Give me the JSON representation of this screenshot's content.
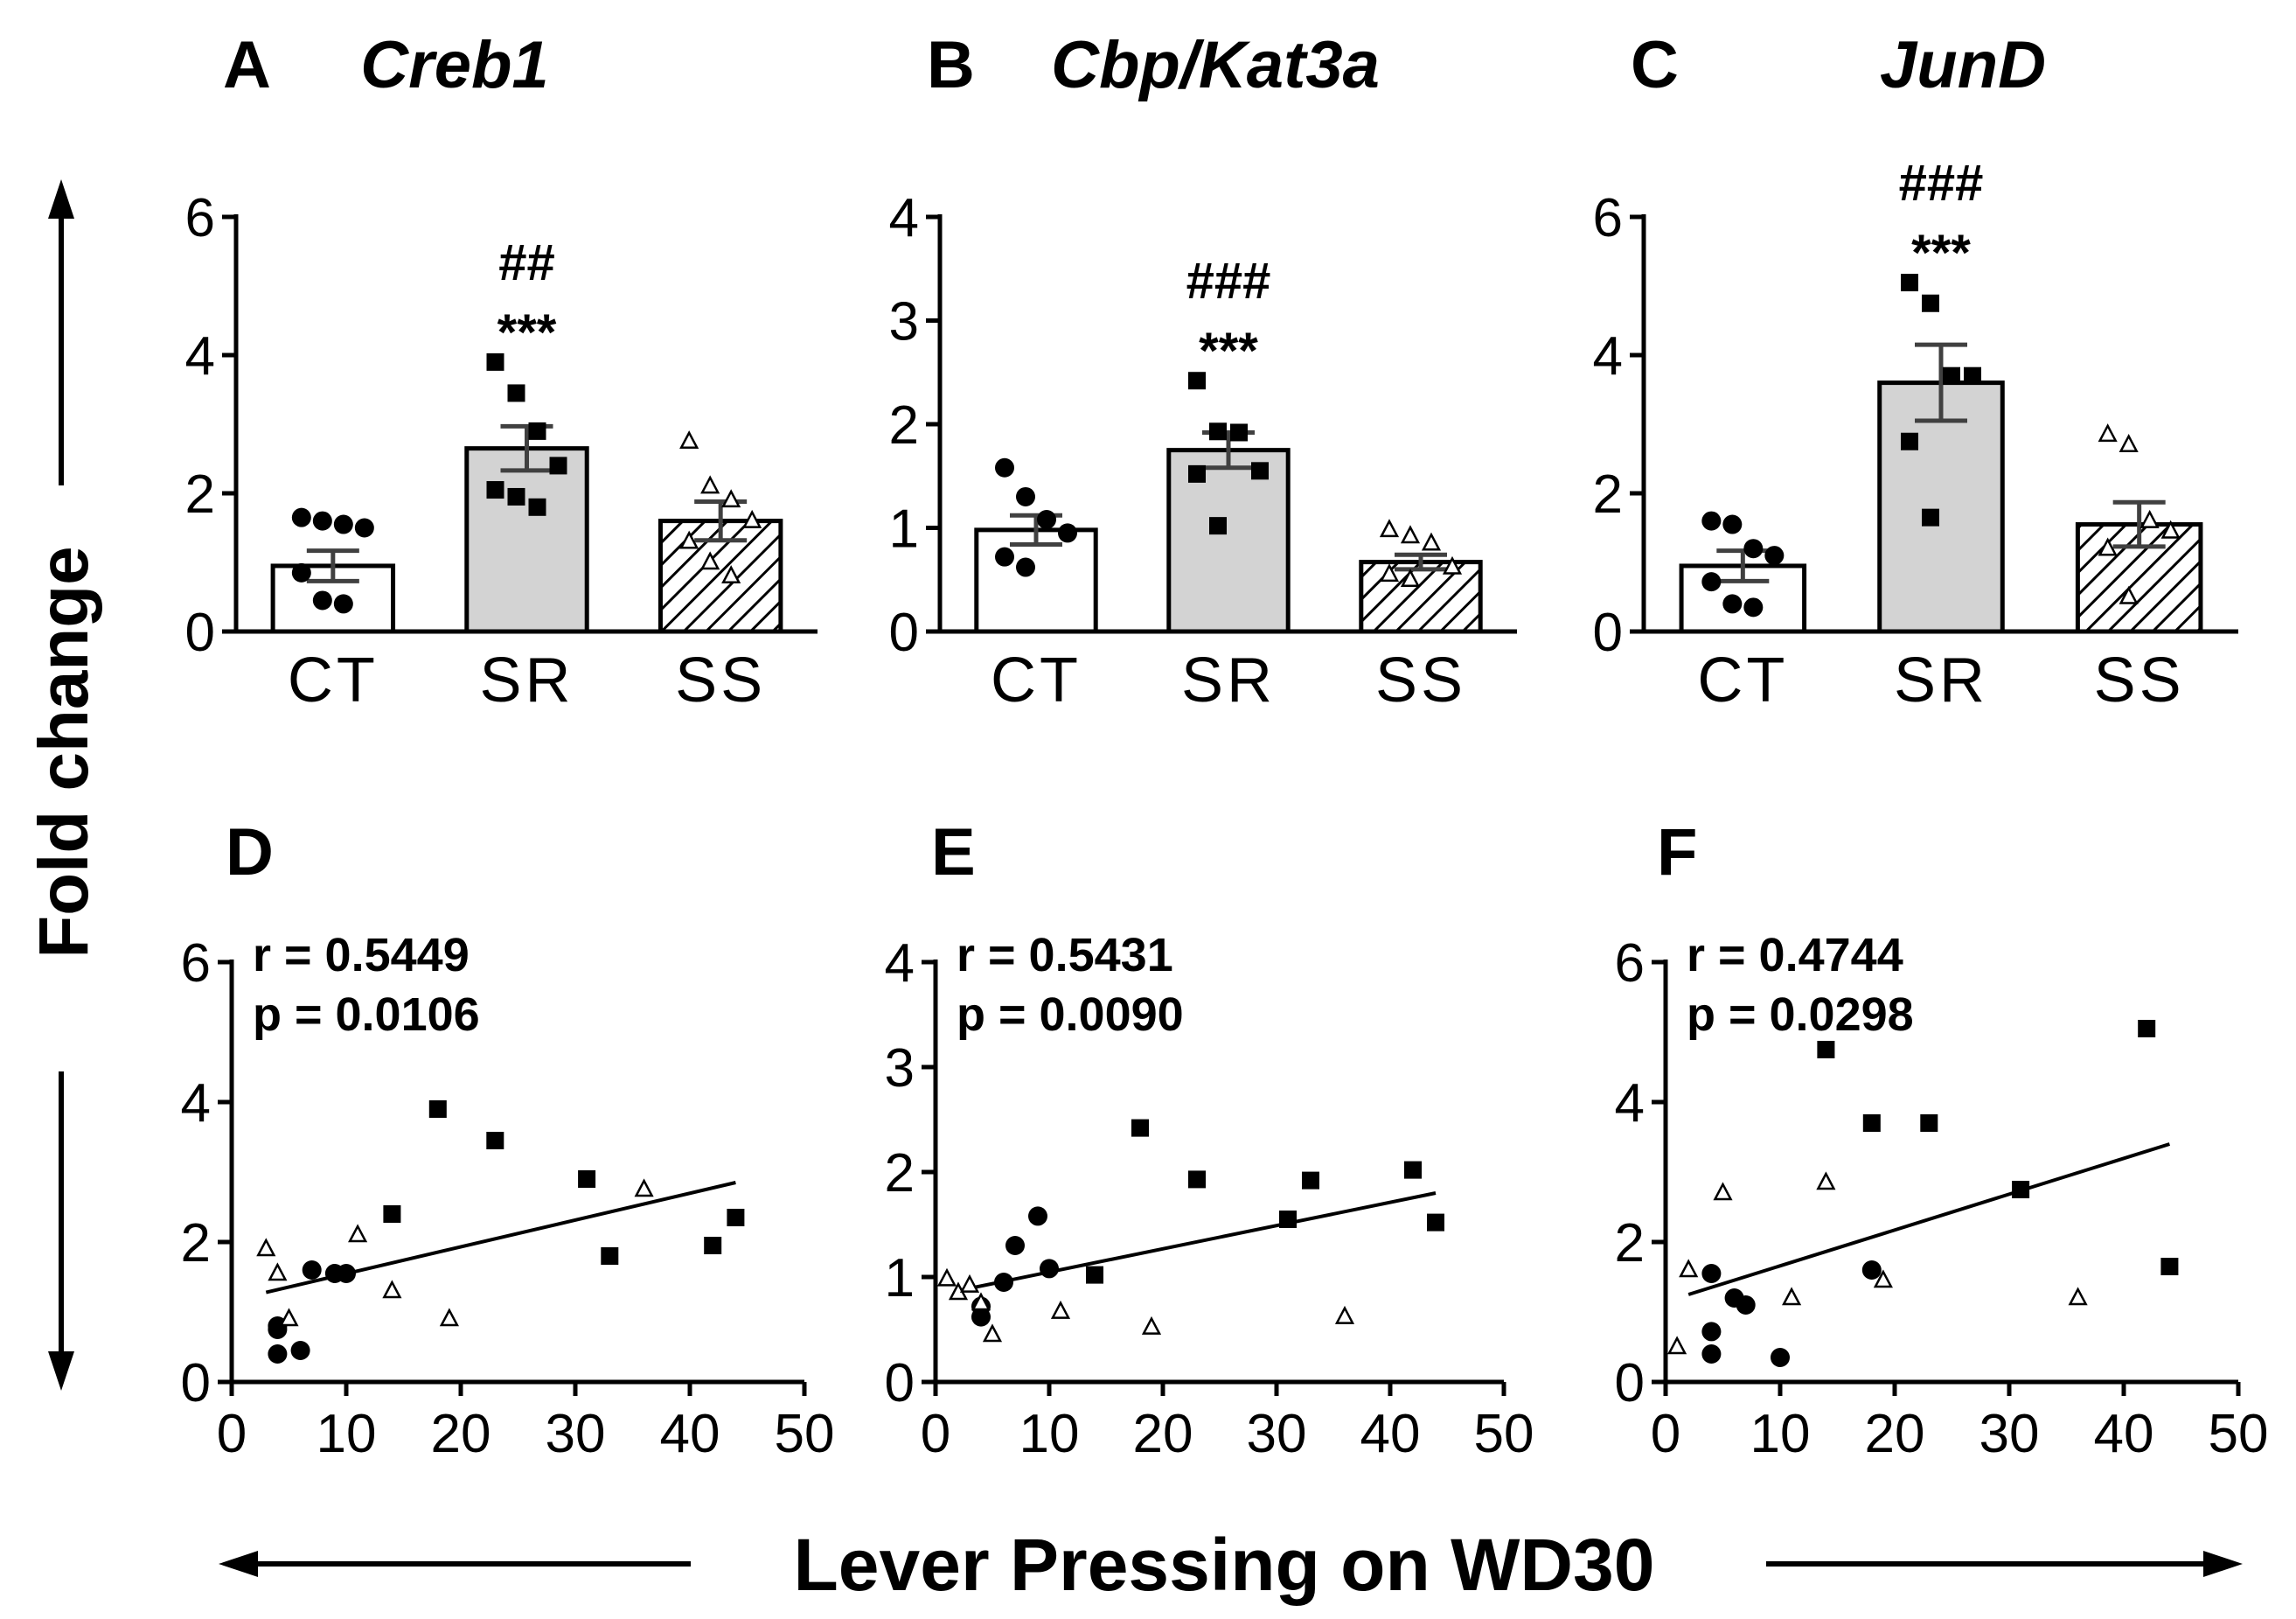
{
  "y_axis_label": "Fold change",
  "x_axis_label": "Lever Pressing on WD30",
  "chart_data": [
    {
      "panel": "A",
      "title": "Creb1",
      "type": "bar",
      "categories": [
        "CT",
        "SR",
        "SS"
      ],
      "values": [
        0.95,
        2.65,
        1.6
      ],
      "sem": [
        0.22,
        0.32,
        0.28
      ],
      "ylim": [
        0,
        6
      ],
      "yticks": [
        0,
        2,
        4,
        6
      ],
      "significance": [
        {
          "category": "SR",
          "lines": [
            "##",
            "***"
          ]
        }
      ],
      "points": {
        "CT": [
          1.65,
          1.6,
          1.55,
          1.5,
          0.85,
          0.45,
          0.4
        ],
        "SR": [
          3.9,
          3.45,
          2.9,
          2.4,
          2.05,
          1.95,
          1.8
        ],
        "SS": [
          2.75,
          2.1,
          1.9,
          1.6,
          1.3,
          1.0,
          0.8
        ]
      },
      "fills": [
        "#ffffff",
        "#d3d3d3",
        "hatch"
      ]
    },
    {
      "panel": "B",
      "title": "Cbp/Kat3a",
      "type": "bar",
      "categories": [
        "CT",
        "SR",
        "SS"
      ],
      "values": [
        0.98,
        1.75,
        0.67
      ],
      "sem": [
        0.14,
        0.17,
        0.07
      ],
      "ylim": [
        0,
        4
      ],
      "yticks": [
        0,
        1,
        2,
        3,
        4
      ],
      "significance": [
        {
          "category": "SR",
          "lines": [
            "###",
            "***"
          ]
        }
      ],
      "points": {
        "CT": [
          1.58,
          1.3,
          1.08,
          0.95,
          0.72,
          0.62
        ],
        "SR": [
          2.42,
          1.93,
          1.92,
          1.55,
          1.52,
          1.02
        ],
        "SS": [
          0.98,
          0.92,
          0.85,
          0.62,
          0.55,
          0.5
        ]
      },
      "fills": [
        "#ffffff",
        "#d3d3d3",
        "hatch"
      ]
    },
    {
      "panel": "C",
      "title": "JunD",
      "type": "bar",
      "categories": [
        "CT",
        "SR",
        "SS"
      ],
      "values": [
        0.95,
        3.6,
        1.55
      ],
      "sem": [
        0.22,
        0.55,
        0.32
      ],
      "ylim": [
        0,
        6
      ],
      "yticks": [
        0,
        2,
        4,
        6
      ],
      "significance": [
        {
          "category": "SR",
          "lines": [
            "###",
            "***"
          ]
        }
      ],
      "points": {
        "CT": [
          1.6,
          1.55,
          1.2,
          1.1,
          0.72,
          0.4,
          0.35
        ],
        "SR": [
          5.05,
          4.75,
          3.7,
          3.7,
          2.75,
          1.65
        ],
        "SS": [
          2.85,
          2.7,
          1.6,
          1.45,
          1.2,
          0.5
        ]
      },
      "fills": [
        "#ffffff",
        "#d3d3d3",
        "hatch"
      ]
    },
    {
      "panel": "D",
      "type": "scatter",
      "r_text": "r = 0.5449",
      "p_text": "p = 0.0106",
      "xlim": [
        0,
        50
      ],
      "xticks": [
        0,
        10,
        20,
        30,
        40,
        50
      ],
      "ylim": [
        0,
        6
      ],
      "yticks": [
        0,
        2,
        4,
        6
      ],
      "fit": {
        "x": [
          3,
          44
        ],
        "y": [
          1.28,
          2.85
        ]
      },
      "series": [
        {
          "name": "CT",
          "marker": "circle",
          "x": [
            4,
            4,
            4,
            6,
            7,
            9,
            10
          ],
          "y": [
            0.8,
            0.75,
            0.4,
            0.45,
            1.6,
            1.55,
            1.55
          ]
        },
        {
          "name": "SR",
          "marker": "square",
          "x": [
            18,
            23,
            31,
            14,
            33,
            42,
            44
          ],
          "y": [
            3.9,
            3.45,
            2.9,
            2.4,
            1.8,
            1.95,
            2.35
          ]
        },
        {
          "name": "SS",
          "marker": "triangle",
          "x": [
            3,
            4,
            5,
            11,
            14,
            19,
            36
          ],
          "y": [
            1.9,
            1.55,
            0.9,
            2.1,
            1.3,
            0.9,
            2.75
          ]
        }
      ]
    },
    {
      "panel": "E",
      "type": "scatter",
      "r_text": "r = 0.5431",
      "p_text": "p = 0.0090",
      "xlim": [
        0,
        50
      ],
      "xticks": [
        0,
        10,
        20,
        30,
        40,
        50
      ],
      "ylim": [
        0,
        4
      ],
      "yticks": [
        0,
        1,
        2,
        3,
        4
      ],
      "fit": {
        "x": [
          2,
          44
        ],
        "y": [
          0.87,
          1.8
        ]
      },
      "series": [
        {
          "name": "CT",
          "marker": "circle",
          "x": [
            4,
            4,
            6,
            7,
            9,
            10
          ],
          "y": [
            0.72,
            0.62,
            0.95,
            1.3,
            1.58,
            1.08
          ]
        },
        {
          "name": "SR",
          "marker": "square",
          "x": [
            18,
            23,
            31,
            33,
            42,
            44,
            14
          ],
          "y": [
            2.42,
            1.93,
            1.55,
            1.92,
            2.02,
            1.52,
            1.02
          ]
        },
        {
          "name": "SS",
          "marker": "triangle",
          "x": [
            1,
            2,
            3,
            4,
            5,
            11,
            19,
            36
          ],
          "y": [
            0.98,
            0.85,
            0.92,
            0.75,
            0.45,
            0.67,
            0.52,
            0.62
          ]
        }
      ]
    },
    {
      "panel": "F",
      "type": "scatter",
      "r_text": "r = 0.4744",
      "p_text": "p = 0.0298",
      "xlim": [
        0,
        50
      ],
      "xticks": [
        0,
        10,
        20,
        30,
        40,
        50
      ],
      "ylim": [
        0,
        6
      ],
      "yticks": [
        0,
        2,
        4,
        6
      ],
      "fit": {
        "x": [
          2,
          44
        ],
        "y": [
          1.25,
          3.4
        ]
      },
      "series": [
        {
          "name": "CT",
          "marker": "circle",
          "x": [
            4,
            4,
            4,
            6,
            7,
            10,
            18
          ],
          "y": [
            1.55,
            0.72,
            0.4,
            1.2,
            1.1,
            0.35,
            1.6
          ]
        },
        {
          "name": "SR",
          "marker": "square",
          "x": [
            14,
            18,
            23,
            31,
            42,
            44
          ],
          "y": [
            4.75,
            3.7,
            3.7,
            2.75,
            5.05,
            1.65
          ]
        },
        {
          "name": "SS",
          "marker": "triangle",
          "x": [
            1,
            2,
            5,
            11,
            14,
            19,
            36
          ],
          "y": [
            0.5,
            1.6,
            2.7,
            1.2,
            2.85,
            1.45,
            1.2
          ]
        }
      ]
    }
  ]
}
